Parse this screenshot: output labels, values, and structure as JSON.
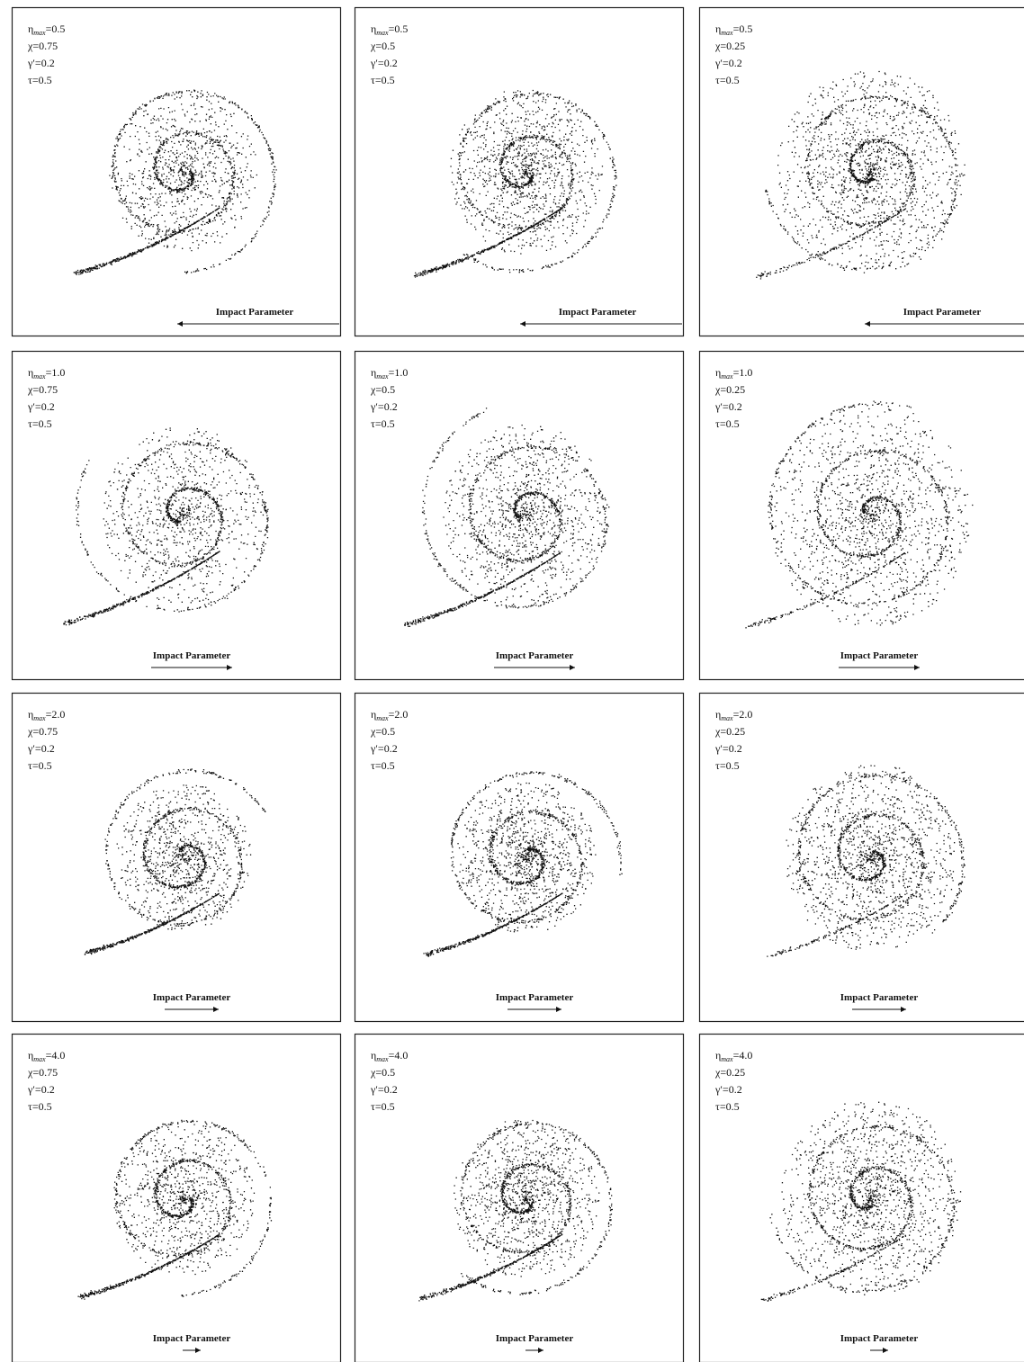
{
  "panels": [
    {
      "eta": {
        "symbol": "η",
        "sub": "max",
        "rest": "=0.5"
      },
      "chi": "χ=0.75",
      "gamma": "γ′=0.2",
      "tau": "τ=0.5",
      "axis_label": "Impact Parameter"
    },
    {
      "eta": {
        "symbol": "η",
        "sub": "max",
        "rest": "=0.5"
      },
      "chi": "χ=0.5",
      "gamma": "γ′=0.2",
      "tau": "τ=0.5",
      "axis_label": "Impact Parameter"
    },
    {
      "eta": {
        "symbol": "η",
        "sub": "max",
        "rest": "=0.5"
      },
      "chi": "χ=0.25",
      "gamma": "γ′=0.2",
      "tau": "τ=0.5",
      "axis_label": "Impact Parameter"
    },
    {
      "eta": {
        "symbol": "η",
        "sub": "max",
        "rest": "=1.0"
      },
      "chi": "χ=0.75",
      "gamma": "γ′=0.2",
      "tau": "τ=0.5",
      "axis_label": "Impact Parameter"
    },
    {
      "eta": {
        "symbol": "η",
        "sub": "max",
        "rest": "=1.0"
      },
      "chi": "χ=0.5",
      "gamma": "γ′=0.2",
      "tau": "τ=0.5",
      "axis_label": "Impact Parameter"
    },
    {
      "eta": {
        "symbol": "η",
        "sub": "max",
        "rest": "=1.0"
      },
      "chi": "χ=0.25",
      "gamma": "γ′=0.2",
      "tau": "τ=0.5",
      "axis_label": "Impact Parameter"
    },
    {
      "eta": {
        "symbol": "η",
        "sub": "max",
        "rest": "=2.0"
      },
      "chi": "χ=0.75",
      "gamma": "γ′=0.2",
      "tau": "τ=0.5",
      "axis_label": "Impact Parameter"
    },
    {
      "eta": {
        "symbol": "η",
        "sub": "max",
        "rest": "=2.0"
      },
      "chi": "χ=0.5",
      "gamma": "γ′=0.2",
      "tau": "τ=0.5",
      "axis_label": "Impact Parameter"
    },
    {
      "eta": {
        "symbol": "η",
        "sub": "max",
        "rest": "=2.0"
      },
      "chi": "χ=0.25",
      "gamma": "γ′=0.2",
      "tau": "τ=0.5",
      "axis_label": "Impact Parameter"
    },
    {
      "eta": {
        "symbol": "η",
        "sub": "max",
        "rest": "=4.0"
      },
      "chi": "χ=0.75",
      "gamma": "γ′=0.2",
      "tau": "τ=0.5",
      "axis_label": "Impact Parameter"
    },
    {
      "eta": {
        "symbol": "η",
        "sub": "max",
        "rest": "=4.0"
      },
      "chi": "χ=0.5",
      "gamma": "γ′=0.2",
      "tau": "τ=0.5",
      "axis_label": "Impact Parameter"
    },
    {
      "eta": {
        "symbol": "η",
        "sub": "max",
        "rest": "=4.0"
      },
      "chi": "χ=0.25",
      "gamma": "γ′=0.2",
      "tau": "τ=0.5",
      "axis_label": "Impact Parameter"
    }
  ]
}
